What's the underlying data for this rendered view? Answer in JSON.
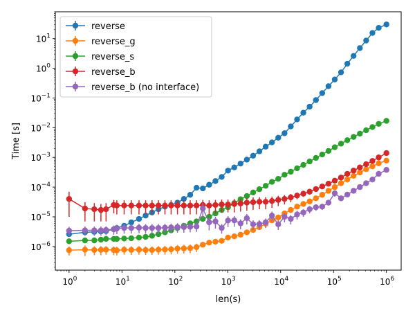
{
  "chart_data": {
    "type": "line",
    "xlabel": "len(s)",
    "ylabel": "Time [s]",
    "xscale": "log",
    "yscale": "log",
    "xlim": [
      0.55,
      1900000
    ],
    "ylim": [
      1.6e-07,
      80
    ],
    "x_ticks": [
      {
        "base": "10",
        "exp": "0",
        "value": 1
      },
      {
        "base": "10",
        "exp": "1",
        "value": 10
      },
      {
        "base": "10",
        "exp": "2",
        "value": 100
      },
      {
        "base": "10",
        "exp": "3",
        "value": 1000
      },
      {
        "base": "10",
        "exp": "4",
        "value": 10000
      },
      {
        "base": "10",
        "exp": "5",
        "value": 100000
      },
      {
        "base": "10",
        "exp": "6",
        "value": 1000000
      }
    ],
    "y_ticks": [
      {
        "base": "10",
        "exp": "−6",
        "value": 1e-06
      },
      {
        "base": "10",
        "exp": "−5",
        "value": 1e-05
      },
      {
        "base": "10",
        "exp": "−4",
        "value": 0.0001
      },
      {
        "base": "10",
        "exp": "−3",
        "value": 0.001
      },
      {
        "base": "10",
        "exp": "−2",
        "value": 0.01
      },
      {
        "base": "10",
        "exp": "−1",
        "value": 0.1
      },
      {
        "base": "10",
        "exp": "0",
        "value": 1
      },
      {
        "base": "10",
        "exp": "1",
        "value": 10
      }
    ],
    "grid": false,
    "legend_position": "top-left",
    "x": [
      1,
      2,
      3,
      4,
      5,
      7,
      8,
      11,
      15,
      21,
      28,
      37,
      49,
      65,
      85,
      112,
      148,
      195,
      257,
      338,
      445,
      585,
      769,
      1011,
      1329,
      1747,
      2296,
      3018,
      3967,
      5214,
      6853,
      9007,
      11839,
      15561,
      20453,
      26883,
      35335,
      46444,
      61045,
      80237,
      105462,
      138618,
      182197,
      239479,
      314770,
      413731,
      543801,
      714763,
      1000000
    ],
    "series": [
      {
        "name": "reverse",
        "color": "#1f77b4",
        "values": [
          2.6e-06,
          3e-06,
          3.1e-06,
          3.2e-06,
          3.3e-06,
          3.8e-06,
          4.2e-06,
          5e-06,
          6.5e-06,
          8.5e-06,
          1.1e-05,
          1.4e-05,
          1.8e-05,
          2.2e-05,
          2.5e-05,
          3e-05,
          4e-05,
          5.5e-05,
          9.5e-05,
          9e-05,
          0.00012,
          0.00016,
          0.00022,
          0.00036,
          0.00046,
          0.00062,
          0.00084,
          0.00114,
          0.0016,
          0.0023,
          0.0032,
          0.0046,
          0.0065,
          0.011,
          0.019,
          0.032,
          0.051,
          0.085,
          0.146,
          0.25,
          0.42,
          0.73,
          1.42,
          2.62,
          4.8,
          8.6,
          15.5,
          23,
          30
        ],
        "errors": [
          3e-07,
          6e-07,
          3e-07,
          4e-07,
          4e-07,
          6e-07,
          5e-07,
          6e-07,
          8e-07,
          1e-06,
          1.3e-06,
          1.7e-06,
          2e-06,
          2.5e-06,
          3e-06,
          4e-06,
          5e-06,
          6e-06,
          1e-05,
          1e-05,
          1.4e-05,
          1.8e-05,
          2.4e-05,
          4e-05,
          5e-05,
          6.5e-05,
          9e-05,
          0.00012,
          0.00017,
          0.00024,
          0.00034,
          0.00048,
          0.00068,
          0.0011,
          0.0019,
          0.0032,
          0.0051,
          0.0085,
          0.015,
          0.025,
          0.042,
          0.073,
          0.14,
          0.26,
          0.48,
          0.86,
          1.5,
          2.3,
          3.0
        ]
      },
      {
        "name": "reverse_g",
        "color": "#ff7f0e",
        "values": [
          7.5e-07,
          7.8e-07,
          7.6e-07,
          7.7e-07,
          7.8e-07,
          7.6e-07,
          7.4e-07,
          7.8e-07,
          7.7e-07,
          7.8e-07,
          7.6e-07,
          7.6e-07,
          7.8e-07,
          7.9e-07,
          8e-07,
          8.5e-07,
          8.6e-07,
          8.8e-07,
          9.5e-07,
          1.15e-06,
          1.35e-06,
          1.45e-06,
          1.55e-06,
          2e-06,
          2.2e-06,
          2.5e-06,
          3e-06,
          3.6e-06,
          4.5e-06,
          5.8e-06,
          7.6e-06,
          9.5e-06,
          1.3e-05,
          1.7e-05,
          2.2e-05,
          2.7e-05,
          3.3e-05,
          4.2e-05,
          5.5e-05,
          7.5e-05,
          0.0001,
          0.000135,
          0.00018,
          0.00024,
          0.00031,
          0.0004,
          0.0005,
          0.00063,
          0.00078
        ],
        "errors": [
          2.5e-07,
          3e-07,
          2.5e-07,
          2.6e-07,
          2.5e-07,
          2.5e-07,
          2.4e-07,
          2.5e-07,
          2.5e-07,
          2.5e-07,
          2.4e-07,
          2.4e-07,
          2.5e-07,
          2.6e-07,
          2.6e-07,
          2.8e-07,
          2.8e-07,
          2.9e-07,
          3e-07,
          2e-07,
          2.2e-07,
          2.4e-07,
          2.5e-07,
          3e-07,
          3.3e-07,
          3.8e-07,
          4.5e-07,
          5.4e-07,
          6.8e-07,
          8.7e-07,
          1.1e-06,
          1.4e-06,
          2e-06,
          2.6e-06,
          3.3e-06,
          4e-06,
          5e-06,
          6.3e-06,
          8.2e-06,
          1.1e-05,
          1.5e-05,
          2e-05,
          2.7e-05,
          3.6e-05,
          4.6e-05,
          6e-05,
          7.5e-05,
          9.5e-05,
          0.00012
        ]
      },
      {
        "name": "reverse_s",
        "color": "#2ca02c",
        "values": [
          1.5e-06,
          1.6e-06,
          1.6e-06,
          1.7e-06,
          1.8e-06,
          1.8e-06,
          1.8e-06,
          1.85e-06,
          1.9e-06,
          2e-06,
          2.1e-06,
          2.3e-06,
          2.6e-06,
          3e-06,
          3.5e-06,
          4.2e-06,
          5e-06,
          6e-06,
          7e-06,
          8.5e-06,
          1e-05,
          1.3e-05,
          1.7e-05,
          2.1e-05,
          2.9e-05,
          3.9e-05,
          5e-05,
          6.6e-05,
          8.5e-05,
          0.00011,
          0.00015,
          0.00019,
          0.00026,
          0.00033,
          0.00043,
          0.00056,
          0.00073,
          0.00096,
          0.00125,
          0.00165,
          0.0022,
          0.0029,
          0.0038,
          0.0049,
          0.0063,
          0.0082,
          0.0105,
          0.0135,
          0.017
        ],
        "errors": [
          3e-07,
          3e-07,
          3e-07,
          3.2e-07,
          3.4e-07,
          3.4e-07,
          3.4e-07,
          3.5e-07,
          3.6e-07,
          3.8e-07,
          4e-07,
          4.3e-07,
          4.9e-07,
          5.6e-07,
          6.5e-07,
          7.8e-07,
          9.3e-07,
          1.1e-06,
          1.3e-06,
          1.6e-06,
          1.9e-06,
          2.4e-06,
          3.1e-06,
          3.9e-06,
          5e-06,
          6e-06,
          7.5e-06,
          1e-05,
          1.3e-05,
          1.65e-05,
          2.2e-05,
          2.8e-05,
          3.9e-05,
          5e-05,
          6.5e-05,
          8.4e-05,
          0.00011,
          0.00014,
          0.00019,
          0.00025,
          0.00033,
          0.00044,
          0.00057,
          0.00074,
          0.00095,
          0.0012,
          0.0016,
          0.002,
          0.0026
        ]
      },
      {
        "name": "reverse_b",
        "color": "#d62728",
        "values": [
          4e-05,
          1.9e-05,
          1.8e-05,
          1.7e-05,
          1.8e-05,
          2.5e-05,
          2.4e-05,
          2.4e-05,
          2.4e-05,
          2.4e-05,
          2.4e-05,
          2.4e-05,
          2.4e-05,
          2.4e-05,
          2.4e-05,
          2.4e-05,
          2.4e-05,
          2.4e-05,
          2.4e-05,
          2.5e-05,
          2.4e-05,
          2.5e-05,
          2.6e-05,
          2.6e-05,
          2.7e-05,
          2.8e-05,
          3e-05,
          3.1e-05,
          3.2e-05,
          3.2e-05,
          3.4e-05,
          3.7e-05,
          4e-05,
          4.5e-05,
          5.2e-05,
          6e-05,
          7e-05,
          8.6e-05,
          0.000105,
          0.00013,
          0.000165,
          0.00021,
          0.00028,
          0.00036,
          0.00046,
          0.00059,
          0.00076,
          0.001,
          0.0014
        ],
        "errors": [
          3e-05,
          1.2e-05,
          1.1e-05,
          1e-05,
          1.1e-05,
          1.2e-05,
          1.2e-05,
          1.2e-05,
          1.2e-05,
          1.2e-05,
          1.2e-05,
          1.2e-05,
          1.2e-05,
          1.2e-05,
          1.2e-05,
          1.2e-05,
          1.2e-05,
          1.2e-05,
          1.2e-05,
          1.2e-05,
          1.2e-05,
          1.2e-05,
          1.2e-05,
          1.2e-05,
          1.3e-05,
          1.3e-05,
          1.4e-05,
          1.4e-05,
          1.4e-05,
          1.4e-05,
          1.4e-05,
          1.4e-05,
          1.4e-05,
          1.4e-05,
          1.3e-05,
          1.3e-05,
          1.4e-05,
          1.6e-05,
          1.9e-05,
          2.3e-05,
          2.9e-05,
          3.7e-05,
          4.8e-05,
          6.2e-05,
          7.9e-05,
          0.0001,
          0.00013,
          0.00017,
          0.00024
        ]
      },
      {
        "name": "reverse_b (no interface)",
        "color": "#9467bd",
        "values": [
          3.4e-06,
          3.5e-06,
          3.5e-06,
          3.5e-06,
          3.6e-06,
          3.8e-06,
          4e-06,
          4.2e-06,
          4.2e-06,
          4.3e-06,
          4.2e-06,
          4.2e-06,
          4.2e-06,
          4.3e-06,
          4.4e-06,
          4.5e-06,
          4.5e-06,
          4.6e-06,
          4.7e-06,
          1.9e-05,
          6.5e-06,
          7e-06,
          4.2e-06,
          7.5e-06,
          7.6e-06,
          6e-06,
          9e-06,
          5.6e-06,
          5.7e-06,
          6.5e-06,
          1.1e-05,
          5.6e-06,
          1e-05,
          8.5e-06,
          1.2e-05,
          1.4e-05,
          1.8e-05,
          2.1e-05,
          2.2e-05,
          3e-05,
          6.2e-05,
          4.2e-05,
          5.6e-05,
          7.5e-05,
          0.0001,
          0.000135,
          0.00018,
          0.00028,
          0.00038
        ],
        "errors": [
          1.2e-06,
          1.2e-06,
          1.2e-06,
          1.2e-06,
          1.2e-06,
          1.3e-06,
          1.4e-06,
          1.5e-06,
          1.5e-06,
          1.5e-06,
          1.5e-06,
          1.5e-06,
          1.5e-06,
          1.5e-06,
          1.5e-06,
          1.6e-06,
          1.6e-06,
          1.6e-06,
          1.6e-06,
          1e-05,
          3e-06,
          3e-06,
          1.5e-06,
          3e-06,
          3e-06,
          2.2e-06,
          3.5e-06,
          2e-06,
          2e-06,
          2.3e-06,
          4e-06,
          2e-06,
          3.5e-06,
          3e-06,
          4e-06,
          4e-06,
          5e-06,
          5e-06,
          5e-06,
          6e-06,
          1.5e-05,
          8e-06,
          1e-05,
          1.3e-05,
          1.7e-05,
          2.3e-05,
          3.1e-05,
          5e-05,
          6.5e-05
        ]
      }
    ]
  }
}
